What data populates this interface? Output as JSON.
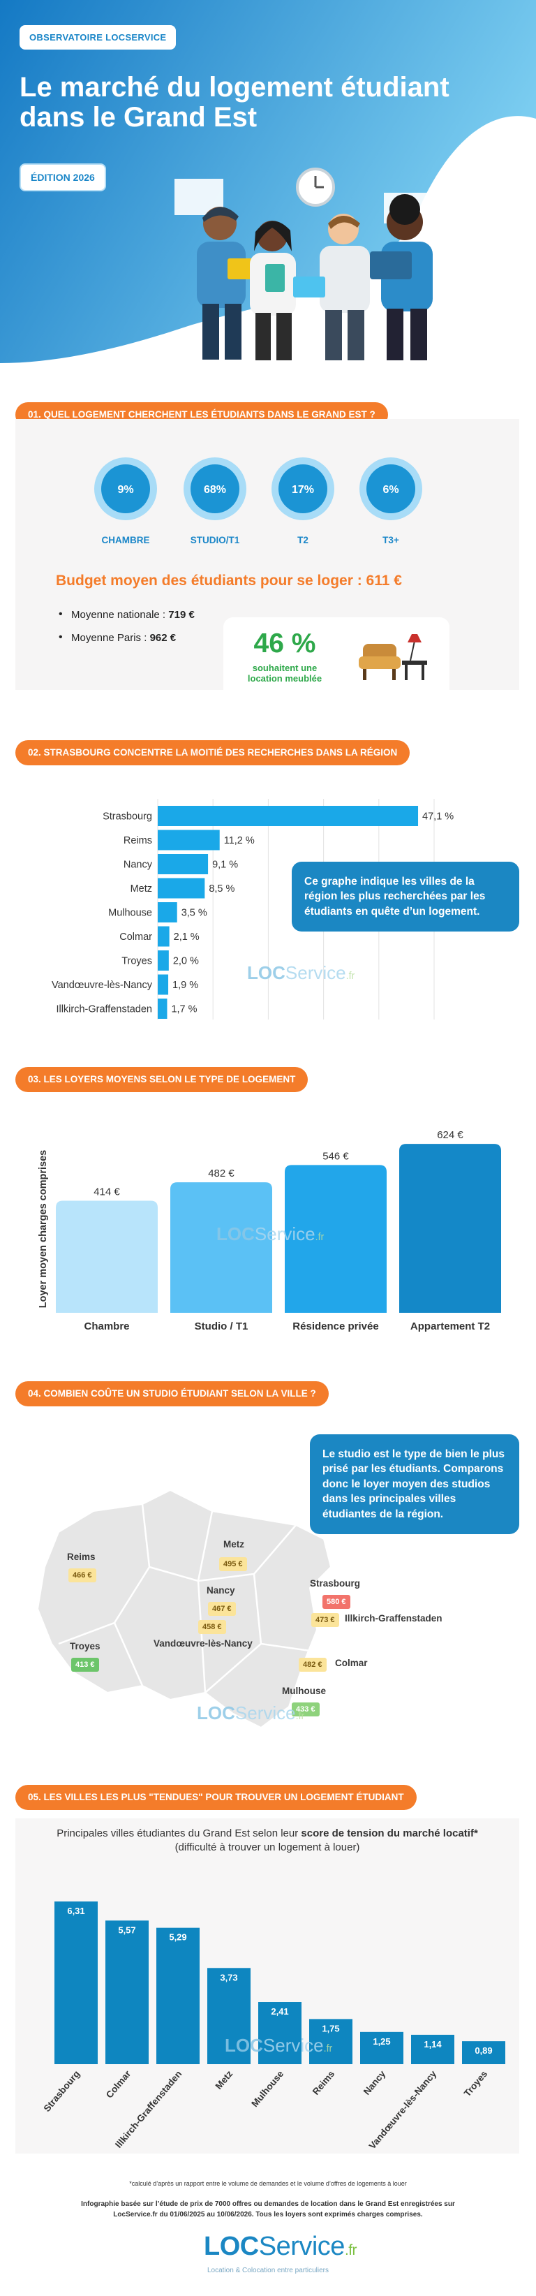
{
  "header": {
    "badge": "OBSERVATOIRE LOCSERVICE",
    "title_line1": "Le marché du logement étudiant",
    "title_line2": "dans le Grand Est",
    "edition": "ÉDITION 2026",
    "colors": {
      "gradient_start": "#1479c4",
      "gradient_end": "#7fd0f2"
    }
  },
  "section1": {
    "heading": "01. QUEL LOGEMENT CHERCHENT LES ÉTUDIANTS DANS LE GRAND EST ?",
    "donuts": [
      {
        "label": "CHAMBRE",
        "value_text": "9%",
        "value": 9
      },
      {
        "label": "STUDIO/T1",
        "value_text": "68%",
        "value": 68
      },
      {
        "label": "T2",
        "value_text": "17%",
        "value": 17
      },
      {
        "label": "T3+",
        "value_text": "6%",
        "value": 6
      }
    ],
    "budget_title": "Budget moyen des étudiants pour se loger : 611 €",
    "budget_items": [
      {
        "label": "Moyenne nationale : ",
        "value": "719 €"
      },
      {
        "label": "Moyenne Paris : ",
        "value": "962 €"
      }
    ],
    "furnished_pct": "46 %",
    "furnished_text": "souhaitent une location meublée"
  },
  "section2": {
    "heading": "02. STRASBOURG CONCENTRE LA MOITIÉ DES RECHERCHES DANS LA RÉGION",
    "callout": "Ce graphe indique les villes de la région les plus recherchées par les étudiants en quête d’un logement.",
    "watermark": {
      "loc": "LOC",
      "svc": "Service",
      "fr": ".fr"
    }
  },
  "section3": {
    "heading": "03. LES LOYERS MOYENS SELON LE TYPE DE LOGEMENT",
    "watermark": {
      "loc": "LOC",
      "svc": "Service",
      "fr": ".fr"
    }
  },
  "section4": {
    "heading": "04. COMBIEN COÛTE UN STUDIO ÉTUDIANT SELON LA VILLE ?",
    "callout": "Le studio est le type de bien le plus prisé par les étudiants. Comparons donc le loyer moyen des studios dans les principales villes étudiantes de la région.",
    "cities": [
      {
        "name": "Reims",
        "price": "466 €",
        "color": "#fbe49a"
      },
      {
        "name": "Metz",
        "price": "495 €",
        "color": "#fbe49a"
      },
      {
        "name": "Strasbourg",
        "price": "580 €",
        "color": "#f2736b"
      },
      {
        "name": "Nancy",
        "price": "467 €",
        "color": "#fbe49a"
      },
      {
        "name": "Vandœuvre-lès-Nancy",
        "price": "458 €",
        "color": "#fbe49a"
      },
      {
        "name": "Illkirch-Graffenstaden",
        "price": "473 €",
        "color": "#fbe49a"
      },
      {
        "name": "Troyes",
        "price": "413 €",
        "color": "#6cc56a"
      },
      {
        "name": "Colmar",
        "price": "482 €",
        "color": "#fbe49a"
      },
      {
        "name": "Mulhouse",
        "price": "433 €",
        "color": "#8ed27c"
      }
    ],
    "watermark": {
      "loc": "LOC",
      "svc": "Service",
      "fr": ".fr"
    }
  },
  "section5": {
    "heading": "05. LES VILLES LES PLUS \"TENDUES\" POUR TROUVER UN LOGEMENT ÉTUDIANT",
    "subtitle_plain": "Principales villes étudiantes du Grand Est selon leur ",
    "subtitle_bold": "score de tension du marché locatif*",
    "subtitle_line2": "(difficulté à trouver un logement à louer)",
    "watermark": {
      "loc": "LOC",
      "svc": "Service",
      "fr": ".fr"
    }
  },
  "chart_data": [
    {
      "type": "bar",
      "orientation": "horizontal",
      "categories": [
        "Strasbourg",
        "Reims",
        "Nancy",
        "Metz",
        "Mulhouse",
        "Colmar",
        "Troyes",
        "Vandœuvre-lès-Nancy",
        "Illkirch-Graffenstaden"
      ],
      "values": [
        47.1,
        11.2,
        9.1,
        8.5,
        3.5,
        2.1,
        2.0,
        1.9,
        1.7
      ],
      "value_labels": [
        "47,1 %",
        "11,2 %",
        "9,1 %",
        "8,5 %",
        "3,5 %",
        "2,1 %",
        "2,0 %",
        "1,9 %",
        "1,7 %"
      ],
      "xlim": [
        0,
        50
      ],
      "grid": true,
      "color": "#1aa8e8"
    },
    {
      "type": "bar",
      "categories": [
        "Chambre",
        "Studio / T1",
        "Résidence privée",
        "Appartement T2"
      ],
      "values": [
        414,
        482,
        546,
        624
      ],
      "value_labels": [
        "414 €",
        "482 €",
        "546 €",
        "624 €"
      ],
      "ylabel": "Loyer moyen charges comprises",
      "ylim": [
        0,
        650
      ],
      "colors": [
        "#b8e4fb",
        "#5bc1f5",
        "#22a6ea",
        "#1488c8"
      ]
    },
    {
      "type": "bar",
      "categories": [
        "Strasbourg",
        "Colmar",
        "Illkirch-Graffenstaden",
        "Metz",
        "Mulhouse",
        "Reims",
        "Nancy",
        "Vandœuvre-lès-Nancy",
        "Troyes"
      ],
      "values": [
        6.31,
        5.57,
        5.29,
        3.73,
        2.41,
        1.75,
        1.25,
        1.14,
        0.89
      ],
      "value_labels": [
        "6,31",
        "5,57",
        "5,29",
        "3,73",
        "2,41",
        "1,75",
        "1,25",
        "1,14",
        "0,89"
      ],
      "ylim": [
        0,
        6.5
      ],
      "color": "#0e86c0"
    }
  ],
  "footer": {
    "note": "*calculé d’après un rapport entre le volume de demandes et le volume d’offres de logements à louer",
    "source_line1": "Infographie basée sur l’étude de prix de 7000 offres ou demandes de location dans le Grand Est enregistrées sur",
    "source_line2": "LocService.fr du 01/06/2025 au 10/06/2026. Tous les loyers sont exprimés charges comprises.",
    "logo": {
      "loc": "LOC",
      "svc": "Service",
      "fr": ".fr"
    },
    "tagline": "Location & Colocation entre particuliers"
  }
}
